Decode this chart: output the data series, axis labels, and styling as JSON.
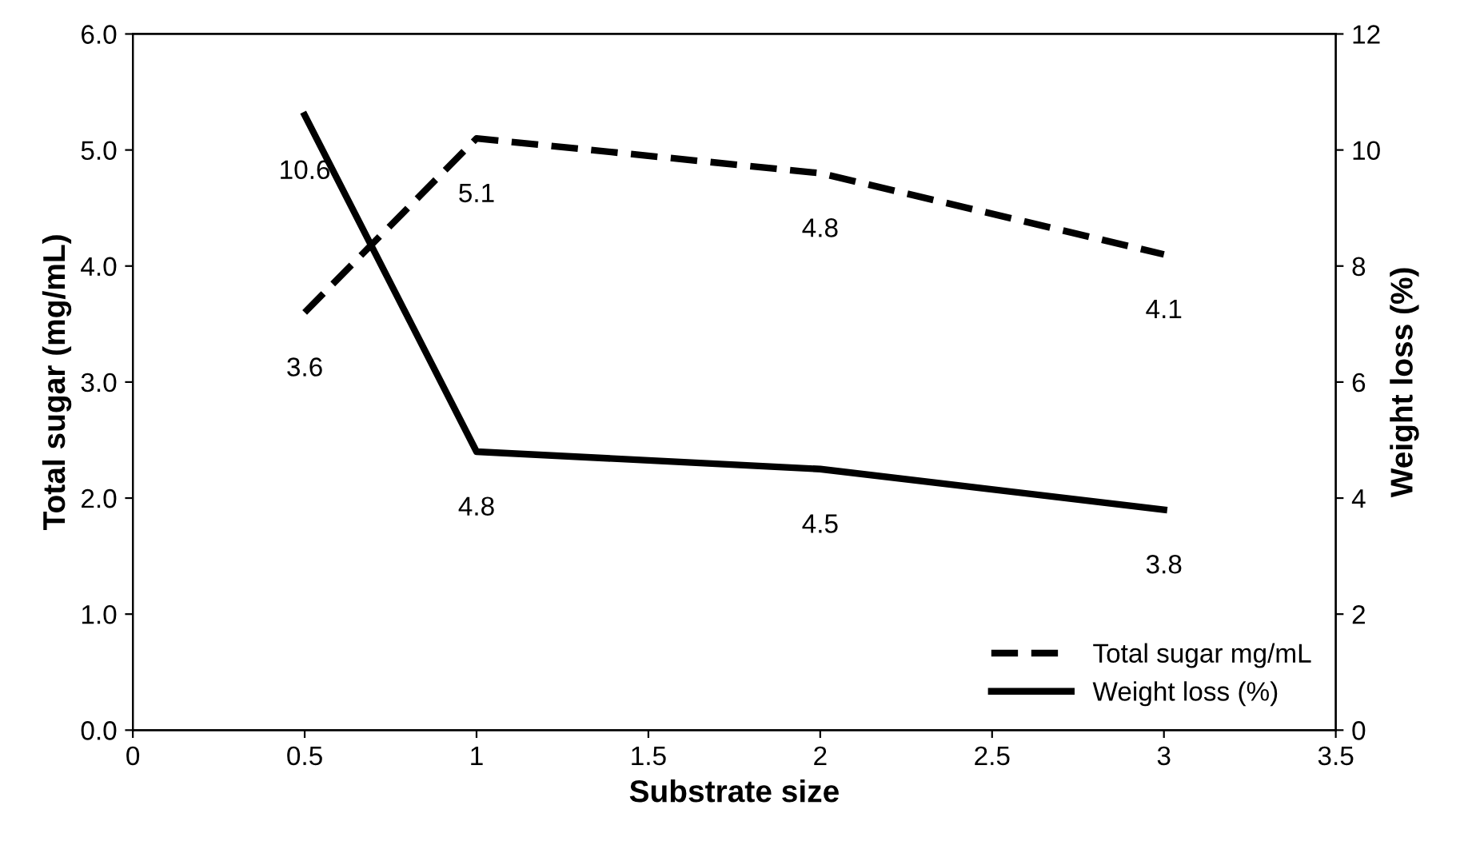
{
  "chart_data": {
    "type": "line",
    "xlabel": "Substrate size",
    "ylabel": "Total sugar (mg/mL)",
    "y2label": "Weight loss (%)",
    "x": [
      0.5,
      1,
      2,
      3
    ],
    "series": [
      {
        "name": "Total sugar mg/mL",
        "color": "#000000",
        "values": [
          3.6,
          5.1,
          4.8,
          4.1
        ],
        "line_style": "dashed"
      },
      {
        "name": "Weight loss (%)",
        "color": "#000000",
        "values": [
          10.6,
          4.8,
          4.5,
          3.8
        ],
        "axis": "y2",
        "line_style": "solid"
      }
    ],
    "xlim": [
      0,
      3.5
    ],
    "xticks": [
      0,
      0.5,
      1,
      1.5,
      2,
      2.5,
      3,
      3.5
    ],
    "ylim": [
      0,
      6
    ],
    "yticks": [
      {
        "value": 0,
        "label": "0.0"
      },
      {
        "value": 1,
        "label": "1.0"
      },
      {
        "value": 2,
        "label": "2.0"
      },
      {
        "value": 3,
        "label": "3.0"
      },
      {
        "value": 4,
        "label": "4.0"
      },
      {
        "value": 5,
        "label": "5.0"
      },
      {
        "value": 6,
        "label": "6.0"
      }
    ],
    "y2lim": [
      0,
      12
    ],
    "y2ticks": [
      0,
      2,
      4,
      6,
      8,
      10,
      12
    ],
    "data_labels": true,
    "legend": "bottom right",
    "grid": false,
    "marker": "none"
  }
}
